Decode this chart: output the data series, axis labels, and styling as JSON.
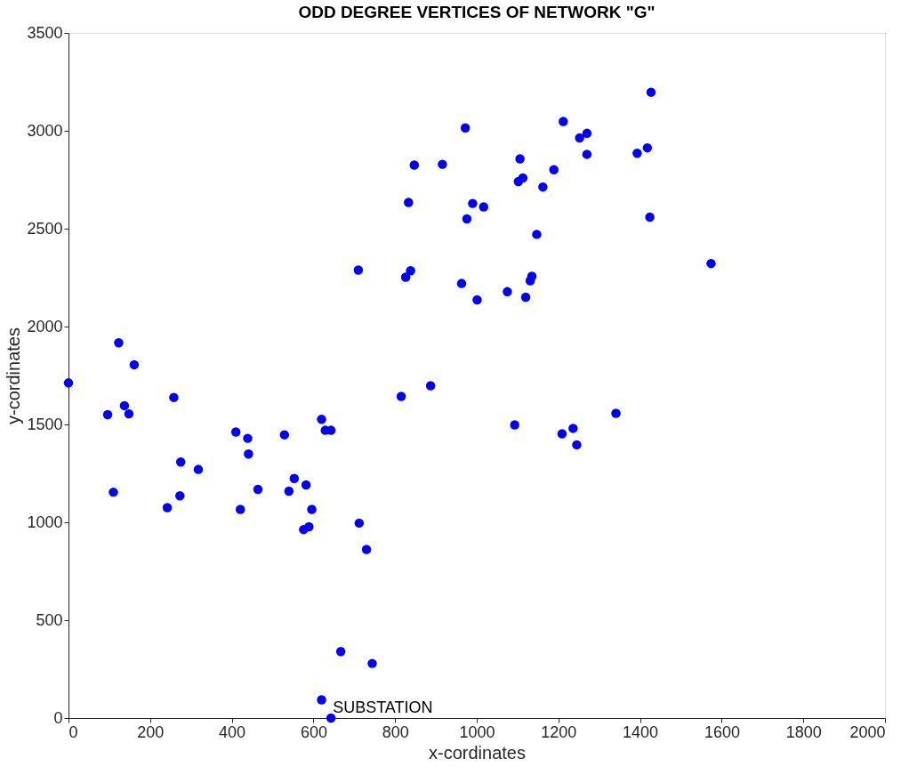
{
  "chart_data": {
    "type": "scatter",
    "title": "ODD DEGREE VERTICES OF NETWORK \"G\"",
    "xlabel": "x-cordinates",
    "ylabel": "y-cordinates",
    "x": [
      0,
      96,
      123,
      137,
      148,
      161,
      110,
      258,
      275,
      242,
      273,
      318,
      410,
      439,
      441,
      421,
      464,
      529,
      540,
      553,
      582,
      596,
      589,
      576,
      620,
      629,
      643,
      712,
      730,
      667,
      744,
      620,
      643,
      710,
      815,
      887,
      826,
      838,
      833,
      847,
      916,
      972,
      990,
      976,
      1017,
      963,
      1001,
      1075,
      1120,
      1135,
      1131,
      1147,
      1093,
      1106,
      1113,
      1102,
      1162,
      1189,
      1212,
      1252,
      1270,
      1270,
      1209,
      1236,
      1245,
      1393,
      1418,
      1427,
      1424,
      1341,
      1574
    ],
    "series": [
      {
        "color": "#0000ff",
        "values": [
          1712,
          1550,
          1917,
          1596,
          1554,
          1805,
          1154,
          1638,
          1308,
          1075,
          1135,
          1270,
          1461,
          1429,
          1349,
          1066,
          1168,
          1447,
          1159,
          1224,
          1191,
          1066,
          977,
          963,
          1526,
          1470,
          1470,
          996,
          861,
          340,
          279,
          93,
          0,
          2289,
          1643,
          1698,
          2252,
          2285,
          2634,
          2825,
          2829,
          3015,
          2629,
          2550,
          2611,
          2220,
          2136,
          2178,
          2150,
          2257,
          2234,
          2471,
          1498,
          2857,
          2759,
          2741,
          2713,
          2801,
          3048,
          2964,
          2987,
          2880,
          1452,
          1480,
          1396,
          2885,
          2913,
          3197,
          2559,
          1557,
          2322
        ]
      }
    ],
    "xlim": [
      0,
      2000
    ],
    "xticks": [
      0,
      200,
      400,
      600,
      800,
      1000,
      1200,
      1400,
      1600,
      1800,
      2000
    ],
    "ylim": [
      0,
      3500
    ],
    "yticks": [
      0,
      500,
      1000,
      1500,
      2000,
      2500,
      3000,
      3500
    ],
    "grid": false,
    "marker": "circle",
    "annotations": [
      {
        "text": "SUBSTATION",
        "x": 643,
        "y": 0
      }
    ]
  }
}
